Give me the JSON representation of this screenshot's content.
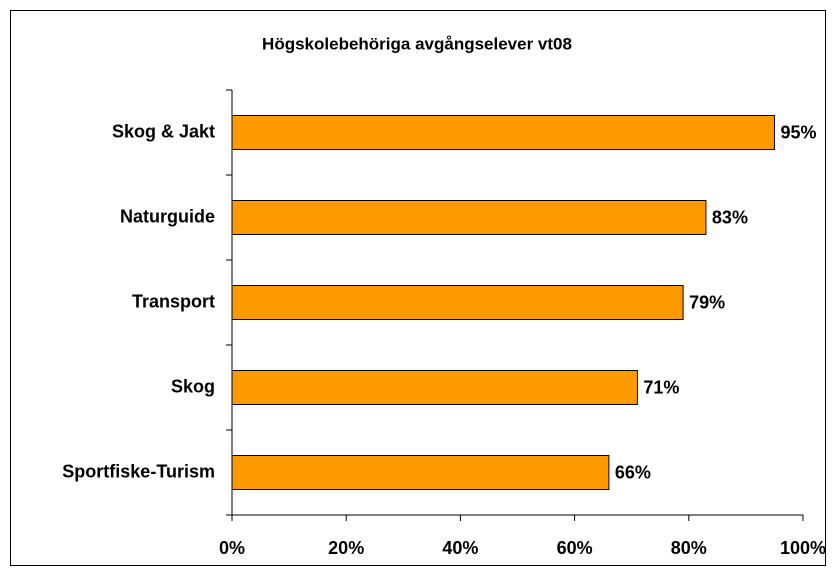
{
  "chart_data": {
    "type": "bar",
    "orientation": "horizontal",
    "title": "Högskolebehöriga avgångselever vt08",
    "categories": [
      "Skog & Jakt",
      "Naturguide",
      "Transport",
      "Skog",
      "Sportfiske-Turism"
    ],
    "values": [
      95,
      83,
      79,
      71,
      66
    ],
    "value_labels": [
      "95%",
      "83%",
      "79%",
      "71%",
      "66%"
    ],
    "color": "#ff9900",
    "xlim": [
      0,
      100
    ],
    "xticks": [
      {
        "value": 0,
        "label": "0%"
      },
      {
        "value": 20,
        "label": "20%"
      },
      {
        "value": 40,
        "label": "40%"
      },
      {
        "value": 60,
        "label": "60%"
      },
      {
        "value": 80,
        "label": "80%"
      },
      {
        "value": 100,
        "label": "100%"
      }
    ],
    "grid": false
  }
}
